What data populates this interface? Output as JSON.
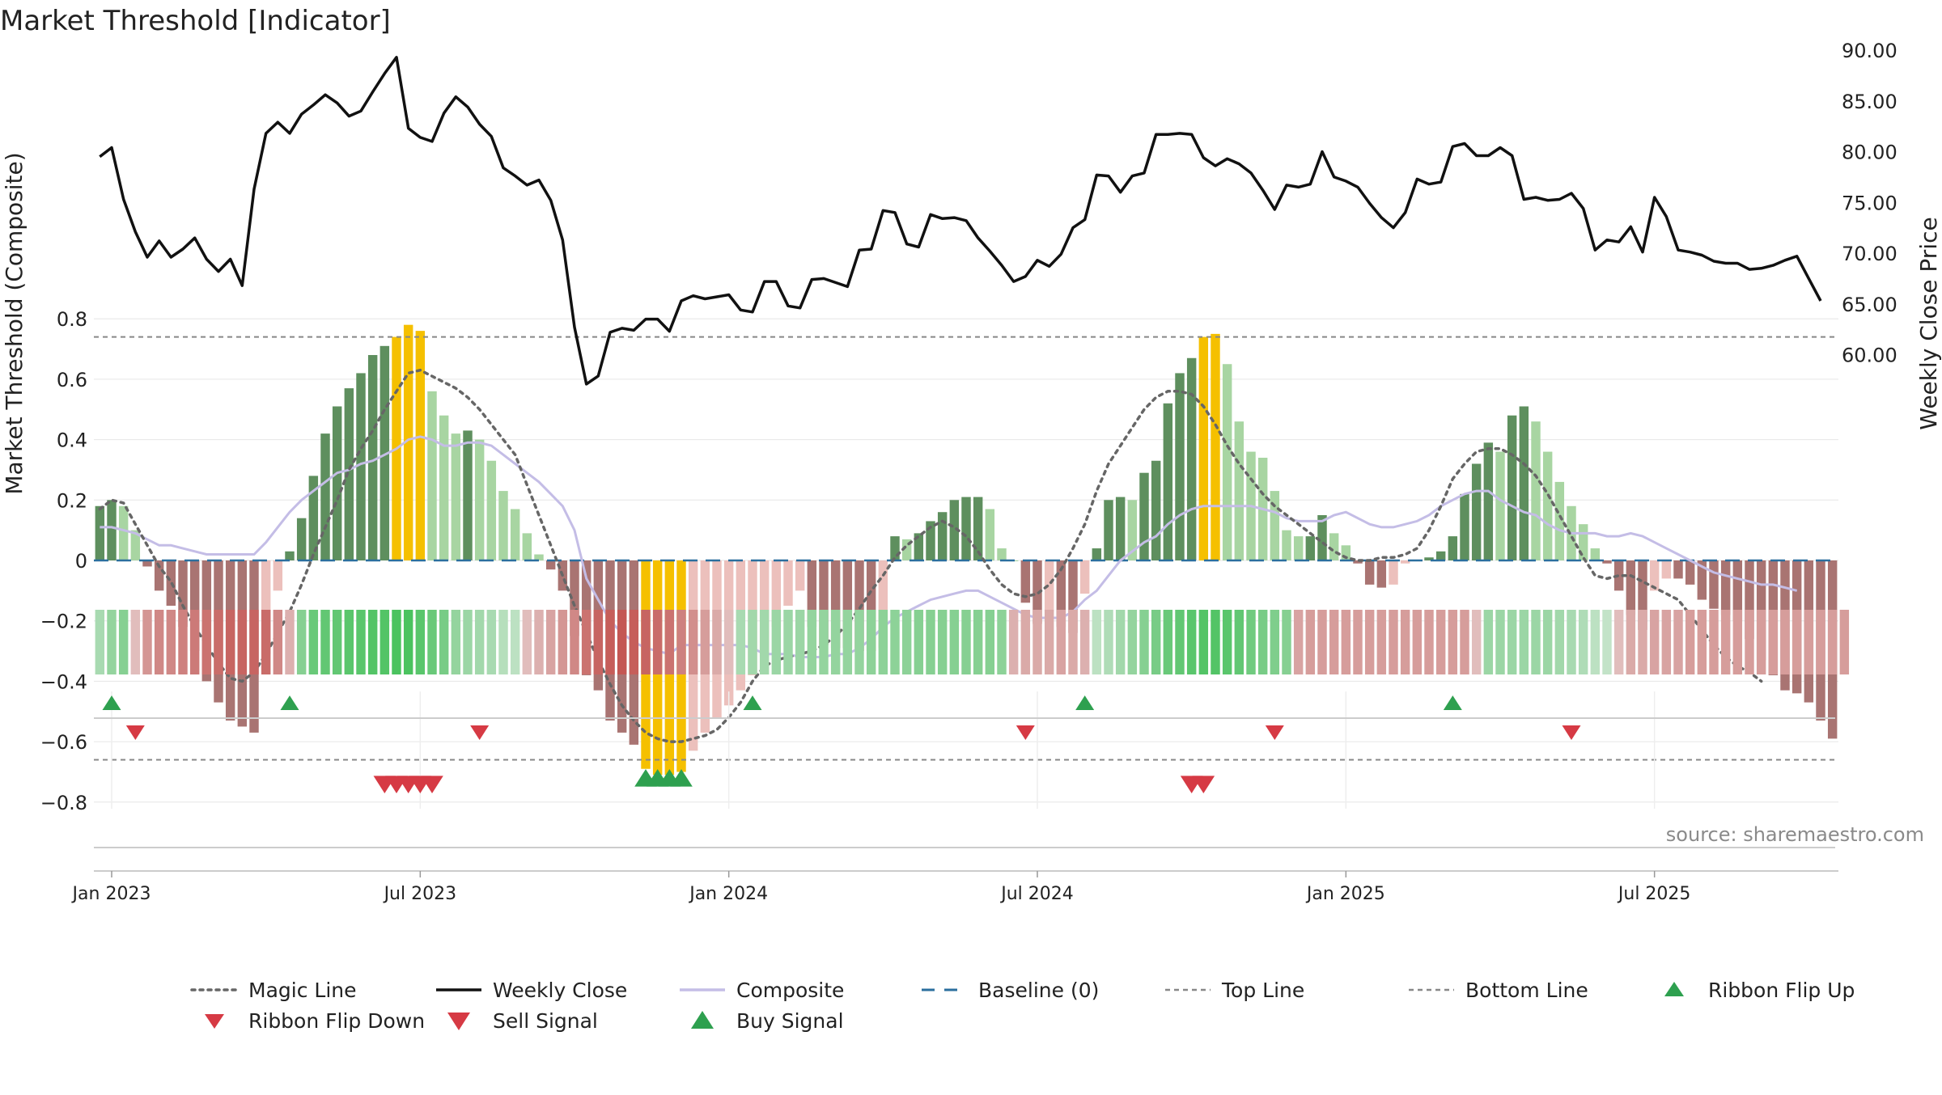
{
  "chart_data": {
    "type": "bar",
    "title": "Market Threshold [Indicator]",
    "ylabel_left": "Market Threshold (Composite)",
    "ylabel_right": "Weekly Close Price",
    "source": "source: sharemaestro.com",
    "ylim_left": [
      -0.86,
      0.86
    ],
    "ylim_right": [
      55.9,
      90.6
    ],
    "yticks_left": [
      {
        "v": 0.8,
        "label": "0.8"
      },
      {
        "v": 0.6,
        "label": "0.6"
      },
      {
        "v": 0.4,
        "label": "0.4"
      },
      {
        "v": 0.2,
        "label": "0.2"
      },
      {
        "v": 0,
        "label": "0"
      },
      {
        "v": -0.2,
        "label": "−0.2"
      },
      {
        "v": -0.4,
        "label": "−0.4"
      },
      {
        "v": -0.6,
        "label": "−0.6"
      },
      {
        "v": -0.8,
        "label": "−0.8"
      }
    ],
    "yticks_right": [
      {
        "v": 90,
        "label": "90.00"
      },
      {
        "v": 85,
        "label": "85.00"
      },
      {
        "v": 80,
        "label": "80.00"
      },
      {
        "v": 75,
        "label": "75.00"
      },
      {
        "v": 70,
        "label": "70.00"
      },
      {
        "v": 65,
        "label": "65.00"
      },
      {
        "v": 60,
        "label": "60.00"
      }
    ],
    "xticks": [
      {
        "i": 1,
        "label": "Jan 2023"
      },
      {
        "i": 27,
        "label": "Jul 2023"
      },
      {
        "i": 53,
        "label": "Jan 2024"
      },
      {
        "i": 79,
        "label": "Jul 2024"
      },
      {
        "i": 105,
        "label": "Jan 2025"
      },
      {
        "i": 131,
        "label": "Jul 2025"
      }
    ],
    "top_line": 0.74,
    "bottom_line": -0.66,
    "baseline": 0,
    "x_start": "2022-12-26",
    "x_step_days": 7,
    "composite": [
      0.18,
      0.2,
      0.18,
      0.1,
      -0.02,
      -0.1,
      -0.15,
      -0.22,
      -0.3,
      -0.4,
      -0.47,
      -0.53,
      -0.55,
      -0.57,
      -0.31,
      -0.1,
      0.03,
      0.14,
      0.28,
      0.42,
      0.51,
      0.57,
      0.62,
      0.68,
      0.71,
      0.74,
      0.78,
      0.76,
      0.56,
      0.48,
      0.42,
      0.43,
      0.4,
      0.33,
      0.23,
      0.17,
      0.09,
      0.02,
      -0.03,
      -0.1,
      -0.25,
      -0.38,
      -0.43,
      -0.53,
      -0.57,
      -0.61,
      -0.69,
      -0.71,
      -0.71,
      -0.7,
      -0.63,
      -0.57,
      -0.52,
      -0.48,
      -0.43,
      -0.38,
      -0.32,
      -0.22,
      -0.15,
      -0.1,
      -0.22,
      -0.28,
      -0.29,
      -0.29,
      -0.3,
      -0.3,
      -0.29,
      0.08,
      0.07,
      0.09,
      0.13,
      0.16,
      0.2,
      0.21,
      0.21,
      0.17,
      0.04,
      0,
      -0.14,
      -0.21,
      -0.17,
      -0.22,
      -0.24,
      -0.11,
      0.04,
      0.2,
      0.21,
      0.2,
      0.29,
      0.33,
      0.52,
      0.62,
      0.67,
      0.74,
      0.75,
      0.65,
      0.46,
      0.36,
      0.34,
      0.23,
      0.1,
      0.08,
      0.08,
      0.15,
      0.09,
      0.05,
      -0.01,
      -0.08,
      -0.09,
      -0.08,
      -0.01,
      0,
      0.01,
      0.03,
      0.08,
      0.22,
      0.32,
      0.39,
      0.36,
      0.48,
      0.51,
      0.46,
      0.36,
      0.26,
      0.18,
      0.12,
      0.04,
      -0.01,
      -0.1,
      -0.18,
      -0.23,
      -0.1,
      -0.06,
      -0.06,
      -0.08,
      -0.13,
      -0.16,
      -0.18,
      -0.2,
      -0.26,
      -0.33,
      -0.38,
      -0.43,
      -0.44,
      -0.47,
      -0.53,
      -0.59
    ],
    "magic_line": [
      0.17,
      0.2,
      0.19,
      0.12,
      0.05,
      -0.02,
      -0.07,
      -0.15,
      -0.22,
      -0.28,
      -0.34,
      -0.39,
      -0.4,
      -0.37,
      -0.31,
      -0.24,
      -0.17,
      -0.08,
      0.02,
      0.11,
      0.2,
      0.3,
      0.37,
      0.43,
      0.5,
      0.56,
      0.62,
      0.63,
      0.61,
      0.59,
      0.57,
      0.54,
      0.5,
      0.45,
      0.4,
      0.35,
      0.25,
      0.15,
      0.05,
      -0.05,
      -0.15,
      -0.24,
      -0.33,
      -0.41,
      -0.48,
      -0.53,
      -0.57,
      -0.59,
      -0.6,
      -0.6,
      -0.59,
      -0.58,
      -0.56,
      -0.52,
      -0.47,
      -0.4,
      -0.35,
      -0.33,
      -0.32,
      -0.31,
      -0.3,
      -0.28,
      -0.25,
      -0.21,
      -0.16,
      -0.1,
      -0.05,
      0.01,
      0.05,
      0.08,
      0.11,
      0.13,
      0.11,
      0.08,
      0.03,
      -0.03,
      -0.08,
      -0.11,
      -0.12,
      -0.11,
      -0.08,
      -0.03,
      0.04,
      0.12,
      0.23,
      0.32,
      0.38,
      0.44,
      0.5,
      0.54,
      0.56,
      0.56,
      0.55,
      0.51,
      0.45,
      0.38,
      0.32,
      0.27,
      0.22,
      0.18,
      0.15,
      0.12,
      0.09,
      0.06,
      0.03,
      0.01,
      0,
      0,
      0.01,
      0.01,
      0.02,
      0.04,
      0.1,
      0.18,
      0.27,
      0.32,
      0.36,
      0.37,
      0.37,
      0.35,
      0.32,
      0.28,
      0.22,
      0.15,
      0.08,
      0.01,
      -0.05,
      -0.06,
      -0.05,
      -0.05,
      -0.07,
      -0.09,
      -0.11,
      -0.13,
      -0.18,
      -0.23,
      -0.28,
      -0.32,
      -0.35,
      -0.37,
      -0.4
    ],
    "composite_smooth": [
      0.11,
      0.11,
      0.1,
      0.09,
      0.07,
      0.05,
      0.05,
      0.04,
      0.03,
      0.02,
      0.02,
      0.02,
      0.02,
      0.02,
      0.06,
      0.11,
      0.16,
      0.2,
      0.23,
      0.26,
      0.29,
      0.3,
      0.32,
      0.33,
      0.35,
      0.37,
      0.4,
      0.41,
      0.4,
      0.38,
      0.38,
      0.39,
      0.39,
      0.38,
      0.35,
      0.32,
      0.29,
      0.26,
      0.22,
      0.18,
      0.1,
      -0.06,
      -0.13,
      -0.2,
      -0.24,
      -0.27,
      -0.29,
      -0.3,
      -0.31,
      -0.28,
      -0.28,
      -0.28,
      -0.28,
      -0.28,
      -0.28,
      -0.29,
      -0.31,
      -0.31,
      -0.31,
      -0.32,
      -0.32,
      -0.32,
      -0.31,
      -0.31,
      -0.29,
      -0.26,
      -0.22,
      -0.19,
      -0.17,
      -0.15,
      -0.13,
      -0.12,
      -0.11,
      -0.1,
      -0.1,
      -0.12,
      -0.14,
      -0.16,
      -0.18,
      -0.19,
      -0.19,
      -0.19,
      -0.17,
      -0.13,
      -0.1,
      -0.05,
      0,
      0.03,
      0.06,
      0.08,
      0.12,
      0.15,
      0.17,
      0.18,
      0.18,
      0.18,
      0.18,
      0.18,
      0.17,
      0.16,
      0.14,
      0.13,
      0.13,
      0.13,
      0.15,
      0.16,
      0.14,
      0.12,
      0.11,
      0.11,
      0.12,
      0.13,
      0.15,
      0.18,
      0.2,
      0.22,
      0.23,
      0.23,
      0.2,
      0.18,
      0.16,
      0.15,
      0.12,
      0.1,
      0.09,
      0.09,
      0.09,
      0.08,
      0.08,
      0.09,
      0.08,
      0.06,
      0.04,
      0.02,
      0.0,
      -0.02,
      -0.04,
      -0.05,
      -0.06,
      -0.07,
      -0.08,
      -0.08,
      -0.09,
      -0.1
    ],
    "weekly_close": [
      79.5,
      80.4,
      75.3,
      72.1,
      69.6,
      71.2,
      69.6,
      70.4,
      71.5,
      69.4,
      68.2,
      69.4,
      66.8,
      76.3,
      81.8,
      82.9,
      81.8,
      83.7,
      84.6,
      85.6,
      84.8,
      83.5,
      84.0,
      85.9,
      87.7,
      89.3,
      82.3,
      81.4,
      81.0,
      83.8,
      85.4,
      84.4,
      82.7,
      81.5,
      78.4,
      77.6,
      76.7,
      77.2,
      75.2,
      71.3,
      62.7,
      57.1,
      57.9,
      62.2,
      62.6,
      62.4,
      63.5,
      63.5,
      62.3,
      65.3,
      65.8,
      65.5,
      65.7,
      65.9,
      64.4,
      64.2,
      67.2,
      67.2,
      64.8,
      64.6,
      67.4,
      67.5,
      67.1,
      66.7,
      70.3,
      70.4,
      74.2,
      74.0,
      70.9,
      70.6,
      73.8,
      73.4,
      73.5,
      73.2,
      71.5,
      70.2,
      68.8,
      67.2,
      67.7,
      69.3,
      68.7,
      69.9,
      72.5,
      73.3,
      77.7,
      77.6,
      76.0,
      77.6,
      77.9,
      81.7,
      81.7,
      81.8,
      81.7,
      79.4,
      78.6,
      79.3,
      78.8,
      77.9,
      76.2,
      74.3,
      76.7,
      76.5,
      76.8,
      80.0,
      77.5,
      77.1,
      76.5,
      74.9,
      73.5,
      72.5,
      74.0,
      77.3,
      76.8,
      77.0,
      80.5,
      80.8,
      79.6,
      79.6,
      80.4,
      79.6,
      75.3,
      75.5,
      75.2,
      75.3,
      75.9,
      74.4,
      70.3,
      71.3,
      71.1,
      72.6,
      70.1,
      75.5,
      73.6,
      70.3,
      70.1,
      69.8,
      69.2,
      69.0,
      69.0,
      68.4,
      68.5,
      68.8,
      69.3,
      69.7,
      67.5,
      65.3
    ],
    "ribbon": [
      0.35,
      0.5,
      0.6,
      -0.2,
      -0.5,
      -0.6,
      -0.6,
      -0.65,
      -0.7,
      -0.75,
      -0.8,
      -0.85,
      -0.85,
      -0.85,
      -0.8,
      -0.6,
      -0.3,
      0.6,
      0.8,
      0.85,
      0.85,
      0.9,
      0.9,
      0.95,
      0.95,
      1,
      1,
      0.9,
      0.8,
      0.7,
      0.5,
      0.45,
      0.4,
      0.35,
      0.25,
      0.2,
      -0.2,
      -0.3,
      -0.4,
      -0.5,
      -0.6,
      -0.75,
      -0.85,
      -0.9,
      -0.95,
      -0.9,
      -0.85,
      -0.8,
      -0.75,
      -0.65,
      -0.55,
      -0.45,
      -0.35,
      -0.2,
      0.35,
      0.4,
      0.4,
      0.45,
      0.45,
      0.45,
      0.5,
      0.5,
      0.5,
      0.5,
      0.5,
      0.55,
      0.55,
      0.55,
      0.55,
      0.6,
      0.6,
      0.6,
      0.6,
      0.6,
      0.6,
      0.6,
      0.55,
      -0.3,
      -0.35,
      -0.35,
      -0.35,
      -0.4,
      -0.35,
      -0.3,
      0.2,
      0.3,
      0.4,
      0.5,
      0.6,
      0.7,
      0.8,
      0.85,
      0.9,
      0.95,
      0.95,
      0.9,
      0.85,
      0.75,
      0.7,
      0.65,
      0.6,
      -0.4,
      -0.45,
      -0.45,
      -0.45,
      -0.45,
      -0.45,
      -0.45,
      -0.45,
      -0.45,
      -0.45,
      -0.45,
      -0.45,
      -0.45,
      -0.45,
      -0.45,
      -0.2,
      0.45,
      0.45,
      0.45,
      0.45,
      0.45,
      0.45,
      0.4,
      0.35,
      0.3,
      0.2,
      0.15,
      -0.2,
      -0.35,
      -0.35,
      -0.4,
      -0.4,
      -0.4,
      -0.45,
      -0.45,
      -0.45,
      -0.45,
      -0.45,
      -0.45,
      -0.45,
      -0.45,
      -0.45,
      -0.45,
      -0.45,
      -0.45,
      -0.45,
      -0.45
    ],
    "ribbon_flip_up": [
      1,
      16,
      55,
      83,
      114
    ],
    "ribbon_flip_down": [
      3,
      32,
      78,
      99,
      124
    ],
    "sell_signal": [
      24,
      25,
      26,
      27,
      28,
      92,
      93
    ],
    "buy_signal": [
      46,
      47,
      48,
      49
    ],
    "legend": [
      {
        "key": "magic",
        "label": "Magic Line"
      },
      {
        "key": "close",
        "label": "Weekly Close"
      },
      {
        "key": "composite",
        "label": "Composite"
      },
      {
        "key": "baseline",
        "label": "Baseline (0)"
      },
      {
        "key": "topline",
        "label": "Top Line"
      },
      {
        "key": "bottomline",
        "label": "Bottom Line"
      },
      {
        "key": "flipup",
        "label": "Ribbon Flip Up"
      },
      {
        "key": "flipdown",
        "label": "Ribbon Flip Down"
      },
      {
        "key": "sell",
        "label": "Sell Signal"
      },
      {
        "key": "buy",
        "label": "Buy Signal"
      }
    ],
    "colors": {
      "bull_strong": "#5e8f5e",
      "bull_weak": "#a8d5a2",
      "bear_strong": "#a97472",
      "bear_weak": "#ecc0bc",
      "extreme": "#f5c000",
      "close": "#111111",
      "magic": "#666666",
      "composite_line": "#c4bde6",
      "baseline": "#2b6f9e",
      "threshold": "#888888",
      "up": "#2ea04f",
      "down": "#d63a44",
      "grid": "#e6e6e6"
    }
  }
}
